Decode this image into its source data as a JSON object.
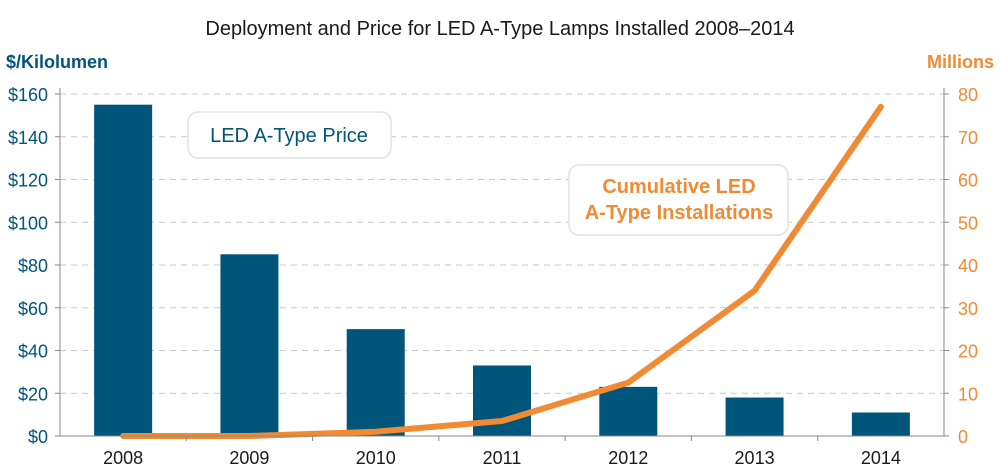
{
  "chart_data": {
    "type": "bar",
    "title": "Deployment and Price for LED A-Type Lamps Installed 2008–2014",
    "categories": [
      "2008",
      "2009",
      "2010",
      "2011",
      "2012",
      "2013",
      "2014"
    ],
    "ylabel_left": "$/Kilolumen",
    "ylabel_right": "Millions",
    "ylim_left": [
      0,
      160
    ],
    "ylim_right": [
      0,
      80
    ],
    "yticks_left": [
      "$0",
      "$20",
      "$40",
      "$60",
      "$80",
      "$100",
      "$120",
      "$140",
      "$160"
    ],
    "yticks_right": [
      "0",
      "10",
      "20",
      "30",
      "40",
      "50",
      "60",
      "70",
      "80"
    ],
    "grid": true,
    "series": [
      {
        "name": "LED A-Type Price",
        "type": "bar",
        "axis": "left",
        "values": [
          155,
          85,
          50,
          33,
          23,
          18,
          11
        ]
      },
      {
        "name": "Cumulative LED A-Type Installations",
        "type": "line",
        "axis": "right",
        "values": [
          0,
          0,
          1,
          3.5,
          12.5,
          34,
          77
        ]
      }
    ],
    "annotations": {
      "price": [
        "LED A-Type Price"
      ],
      "installations": [
        "Cumulative LED",
        "A-Type Installations"
      ]
    },
    "colors": {
      "bar": "#00557a",
      "line": "#f08a33",
      "grid": "#c8c8c8",
      "axis_text_left": "#00557a",
      "axis_text_right": "#f08a33"
    }
  }
}
